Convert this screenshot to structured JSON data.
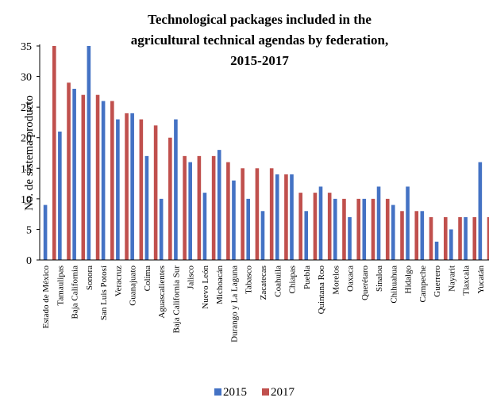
{
  "chart_data": {
    "type": "bar",
    "title_lines": [
      "Technological packages included in the",
      "agricultural technical agendas by federation,",
      "2015-2017"
    ],
    "xlabel": "",
    "ylabel": "No. de sistema producto",
    "ylim": [
      0,
      35
    ],
    "yticks": [
      0,
      5,
      10,
      15,
      20,
      25,
      30,
      35
    ],
    "grid": false,
    "legend_position": "bottom",
    "categories": [
      "Estado de México",
      "Tamaulipas",
      "Baja California",
      "Sonora",
      "San Luis Potosí",
      "Veracruz",
      "Guanajuato",
      "Colima",
      "Aguascalientes",
      "Baja California Sur",
      "Jalisco",
      "Nuevo León",
      "Michoacán",
      "Durango y La Laguna",
      "Tabasco",
      "Zacatecas",
      "Coahuila",
      "Chiapas",
      "Puebla",
      "Quintana Roo",
      "Morelos",
      "Oaxaca",
      "Querétaro",
      "Sinaloa",
      "Chihuahua",
      "Hidalgo",
      "Campeche",
      "Guerrero",
      "Nayarit",
      "Tlaxcala",
      "Yucatán"
    ],
    "series": [
      {
        "name": "2015",
        "color": "#4472C4",
        "values": [
          9,
          21,
          28,
          35,
          26,
          23,
          24,
          17,
          10,
          23,
          16,
          11,
          18,
          13,
          10,
          8,
          14,
          14,
          8,
          12,
          10,
          7,
          10,
          12,
          9,
          12,
          8,
          3,
          5,
          7,
          16
        ]
      },
      {
        "name": "2017",
        "color": "#C0504D",
        "values": [
          35,
          29,
          27,
          27,
          26,
          24,
          23,
          22,
          20,
          17,
          17,
          17,
          16,
          15,
          15,
          15,
          14,
          11,
          11,
          11,
          10,
          10,
          10,
          10,
          8,
          8,
          7,
          7,
          7,
          7,
          7
        ]
      }
    ]
  }
}
